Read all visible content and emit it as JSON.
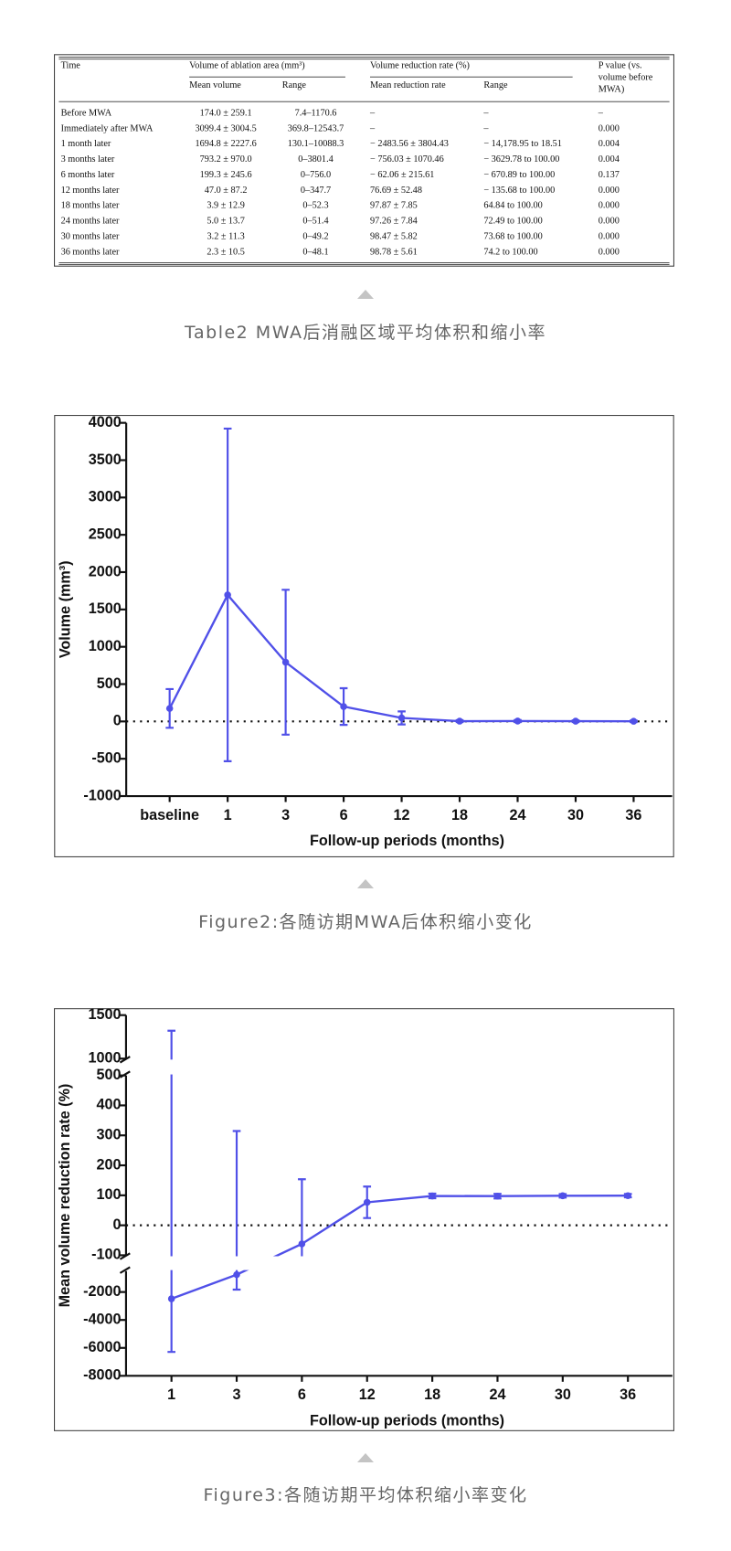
{
  "table": {
    "header": {
      "time": "Time",
      "volume_group": "Volume of ablation area (mm³)",
      "reduction_group": "Volume reduction rate (%)",
      "p_value": [
        "P value (vs.",
        "volume before",
        "MWA)"
      ]
    },
    "subheader": [
      "Mean volume",
      "Range",
      "Mean reduction rate",
      "Range"
    ],
    "rows": [
      [
        "Before MWA",
        "174.0 ± 259.1",
        "7.4–1170.6",
        "–",
        "–",
        "–"
      ],
      [
        "Immediately after MWA",
        "3099.4 ± 3004.5",
        "369.8–12543.7",
        "–",
        "–",
        "0.000"
      ],
      [
        "1 month later",
        "1694.8 ± 2227.6",
        "130.1–10088.3",
        "− 2483.56 ± 3804.43",
        "− 14,178.95 to 18.51",
        "0.004"
      ],
      [
        "3 months later",
        "793.2 ± 970.0",
        "0–3801.4",
        "− 756.03 ± 1070.46",
        "− 3629.78 to 100.00",
        "0.004"
      ],
      [
        "6 months later",
        "199.3 ± 245.6",
        "0–756.0",
        "− 62.06 ± 215.61",
        "− 670.89 to 100.00",
        "0.137"
      ],
      [
        "12 months later",
        "47.0 ± 87.2",
        "0–347.7",
        "76.69 ± 52.48",
        "− 135.68 to 100.00",
        "0.000"
      ],
      [
        "18 months later",
        "3.9 ± 12.9",
        "0–52.3",
        "97.87 ± 7.85",
        "64.84 to 100.00",
        "0.000"
      ],
      [
        "24 months later",
        "5.0 ± 13.7",
        "0–51.4",
        "97.26 ± 7.84",
        "72.49 to 100.00",
        "0.000"
      ],
      [
        "30 months later",
        "3.2 ± 11.3",
        "0–49.2",
        "98.47 ± 5.82",
        "73.68 to 100.00",
        "0.000"
      ],
      [
        "36 months later",
        "2.3 ± 10.5",
        "0–48.1",
        "98.78 ± 5.61",
        "74.2 to 100.00",
        "0.000"
      ]
    ]
  },
  "captions": [
    "Table2 MWA后消融区域平均体积和缩小率",
    "Figure2:各随访期MWA后体积缩小变化",
    "Figure3:各随访期平均体积缩小率变化"
  ],
  "chart_data": [
    {
      "type": "line",
      "xlabel": "Follow-up periods (months)",
      "ylabel": "Volume (mm³)",
      "categories": [
        "baseline",
        "1",
        "3",
        "6",
        "12",
        "18",
        "24",
        "30",
        "36"
      ],
      "values": [
        174.0,
        1694.8,
        793.2,
        199.3,
        47.0,
        3.9,
        5.0,
        3.2,
        2.3
      ],
      "errors": [
        259.1,
        2227.6,
        970.0,
        245.6,
        87.2,
        12.9,
        13.7,
        11.3,
        10.5
      ],
      "color": "#5050e8",
      "reference_line": 0,
      "ylim": [
        -1000,
        4000
      ],
      "yticks": [
        -1000,
        -500,
        0,
        500,
        1000,
        1500,
        2000,
        2500,
        3000,
        3500,
        4000
      ]
    },
    {
      "type": "line",
      "xlabel": "Follow-up periods (months)",
      "ylabel": "Mean volume reduction rate (%)",
      "categories": [
        "1",
        "3",
        "6",
        "12",
        "18",
        "24",
        "30",
        "36"
      ],
      "values": [
        -2483.56,
        -756.03,
        -62.06,
        76.69,
        97.87,
        97.26,
        98.47,
        98.78
      ],
      "errors": [
        3804.43,
        1070.46,
        215.61,
        52.48,
        7.85,
        7.84,
        5.82,
        5.61
      ],
      "color": "#5050e8",
      "reference_line": 0,
      "ysegments": [
        {
          "ylim": [
            -8000,
            -500
          ],
          "yticks": [
            -8000,
            -6000,
            -4000,
            -2000
          ]
        },
        {
          "ylim": [
            -100,
            500
          ],
          "yticks": [
            -100,
            0,
            100,
            200,
            300,
            400,
            500
          ]
        },
        {
          "ylim": [
            1000,
            1500
          ],
          "yticks": [
            1000,
            1500
          ]
        }
      ]
    }
  ]
}
